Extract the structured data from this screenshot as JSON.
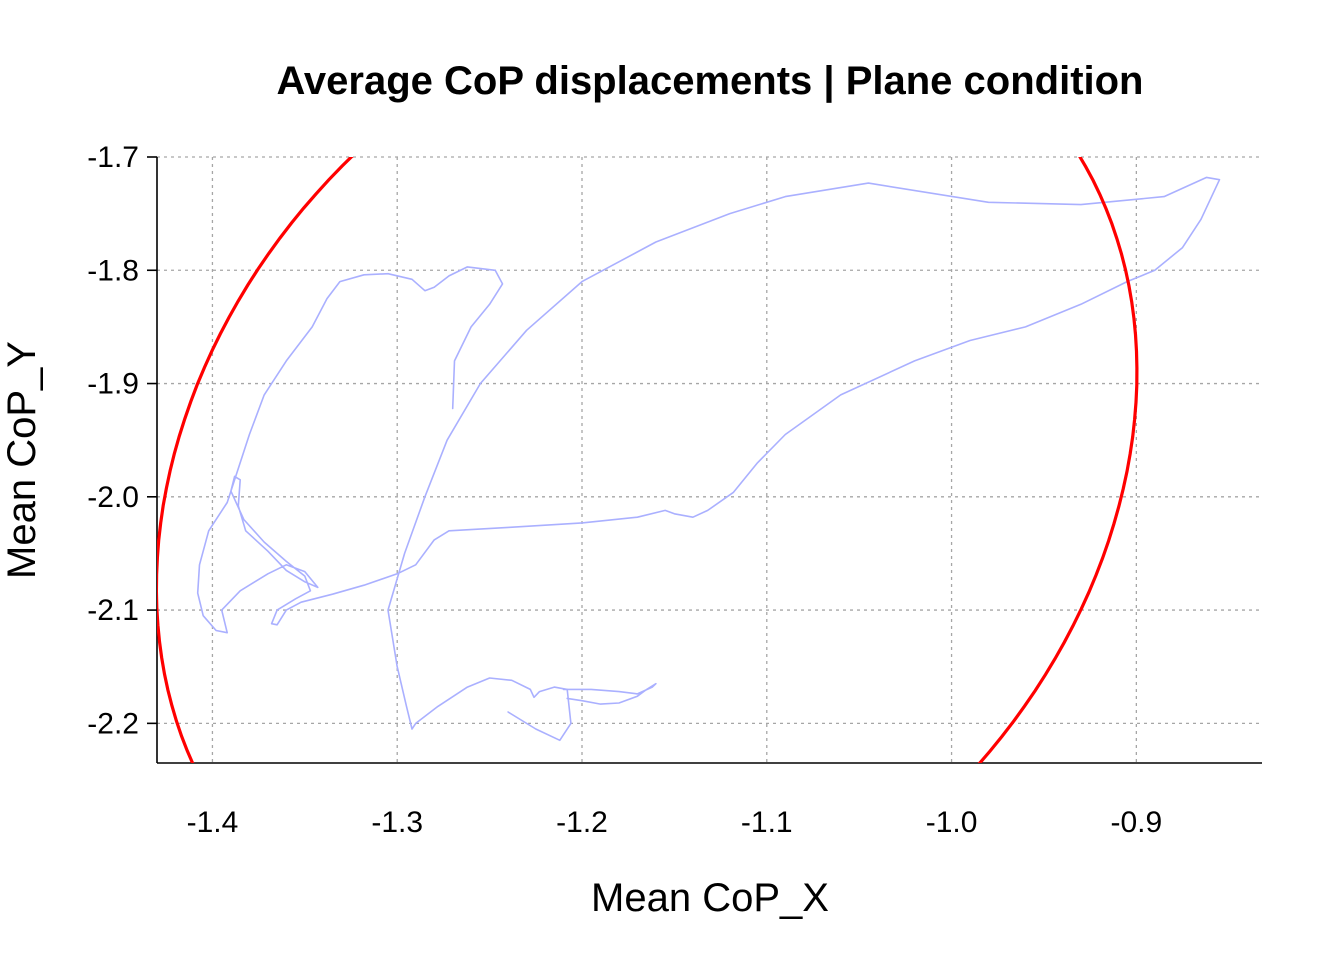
{
  "chart_data": {
    "type": "line",
    "title": "Average CoP displacements | Plane condition",
    "xlabel": "Mean CoP_X",
    "ylabel": "Mean CoP_Y",
    "xlim": [
      -1.43,
      -0.832
    ],
    "ylim": [
      -2.235,
      -1.7
    ],
    "x_ticks": [
      -1.4,
      -1.3,
      -1.2,
      -1.1,
      -1.0,
      -0.9
    ],
    "x_tick_labels": [
      "-1.4",
      "-1.3",
      "-1.2",
      "-1.1",
      "-1.0",
      "-0.9"
    ],
    "y_ticks": [
      -1.7,
      -1.8,
      -1.9,
      -2.0,
      -2.1,
      -2.2
    ],
    "y_tick_labels": [
      "-1.7",
      "-1.8",
      "-1.9",
      "-2.0",
      "-2.1",
      "-2.2"
    ],
    "grid": true,
    "trace_color": "#aab0ff",
    "ellipse_color": "#ff0000",
    "series": [
      {
        "type": "path",
        "points": [
          [
            -1.27,
            -1.922
          ],
          [
            -1.269,
            -1.88
          ],
          [
            -1.26,
            -1.85
          ],
          [
            -1.25,
            -1.83
          ],
          [
            -1.243,
            -1.812
          ],
          [
            -1.247,
            -1.8
          ],
          [
            -1.262,
            -1.797
          ],
          [
            -1.272,
            -1.805
          ],
          [
            -1.28,
            -1.815
          ],
          [
            -1.285,
            -1.818
          ],
          [
            -1.292,
            -1.808
          ],
          [
            -1.305,
            -1.803
          ],
          [
            -1.318,
            -1.804
          ],
          [
            -1.331,
            -1.81
          ],
          [
            -1.338,
            -1.825
          ],
          [
            -1.346,
            -1.85
          ],
          [
            -1.36,
            -1.88
          ],
          [
            -1.372,
            -1.91
          ],
          [
            -1.38,
            -1.945
          ],
          [
            -1.386,
            -1.975
          ],
          [
            -1.392,
            -2.005
          ],
          [
            -1.402,
            -2.03
          ],
          [
            -1.407,
            -2.06
          ],
          [
            -1.408,
            -2.085
          ],
          [
            -1.405,
            -2.105
          ],
          [
            -1.398,
            -2.118
          ],
          [
            -1.392,
            -2.12
          ],
          [
            -1.395,
            -2.1
          ],
          [
            -1.385,
            -2.083
          ],
          [
            -1.37,
            -2.068
          ],
          [
            -1.36,
            -2.06
          ],
          [
            -1.35,
            -2.066
          ],
          [
            -1.343,
            -2.08
          ],
          [
            -1.35,
            -2.075
          ],
          [
            -1.36,
            -2.065
          ],
          [
            -1.37,
            -2.048
          ],
          [
            -1.382,
            -2.03
          ],
          [
            -1.386,
            -2.008
          ],
          [
            -1.385,
            -1.985
          ],
          [
            -1.388,
            -1.982
          ],
          [
            -1.39,
            -1.995
          ],
          [
            -1.383,
            -2.02
          ],
          [
            -1.372,
            -2.04
          ],
          [
            -1.36,
            -2.057
          ],
          [
            -1.35,
            -2.07
          ],
          [
            -1.347,
            -2.083
          ],
          [
            -1.355,
            -2.09
          ],
          [
            -1.365,
            -2.1
          ],
          [
            -1.368,
            -2.112
          ],
          [
            -1.365,
            -2.113
          ],
          [
            -1.36,
            -2.1
          ],
          [
            -1.352,
            -2.093
          ],
          [
            -1.335,
            -2.086
          ],
          [
            -1.318,
            -2.078
          ],
          [
            -1.3,
            -2.068
          ],
          [
            -1.29,
            -2.06
          ],
          [
            -1.28,
            -2.038
          ],
          [
            -1.272,
            -2.03
          ],
          [
            -1.24,
            -2.027
          ],
          [
            -1.2,
            -2.023
          ],
          [
            -1.17,
            -2.018
          ],
          [
            -1.155,
            -2.012
          ],
          [
            -1.15,
            -2.015
          ],
          [
            -1.14,
            -2.018
          ],
          [
            -1.132,
            -2.012
          ],
          [
            -1.118,
            -1.996
          ],
          [
            -1.105,
            -1.97
          ],
          [
            -1.09,
            -1.945
          ],
          [
            -1.06,
            -1.91
          ],
          [
            -1.02,
            -1.88
          ],
          [
            -0.99,
            -1.862
          ],
          [
            -0.96,
            -1.85
          ],
          [
            -0.93,
            -1.83
          ],
          [
            -0.905,
            -1.81
          ],
          [
            -0.89,
            -1.8
          ],
          [
            -0.875,
            -1.78
          ],
          [
            -0.865,
            -1.755
          ],
          [
            -0.855,
            -1.72
          ],
          [
            -0.862,
            -1.718
          ],
          [
            -0.885,
            -1.735
          ],
          [
            -0.93,
            -1.742
          ],
          [
            -0.98,
            -1.74
          ],
          [
            -1.045,
            -1.723
          ],
          [
            -1.09,
            -1.735
          ],
          [
            -1.12,
            -1.75
          ],
          [
            -1.16,
            -1.775
          ],
          [
            -1.2,
            -1.81
          ],
          [
            -1.23,
            -1.853
          ],
          [
            -1.255,
            -1.9
          ],
          [
            -1.273,
            -1.95
          ],
          [
            -1.285,
            -2.0
          ],
          [
            -1.296,
            -2.05
          ],
          [
            -1.305,
            -2.1
          ],
          [
            -1.3,
            -2.15
          ],
          [
            -1.295,
            -2.185
          ],
          [
            -1.292,
            -2.205
          ],
          [
            -1.29,
            -2.2
          ],
          [
            -1.278,
            -2.185
          ],
          [
            -1.262,
            -2.168
          ],
          [
            -1.25,
            -2.16
          ],
          [
            -1.238,
            -2.162
          ],
          [
            -1.228,
            -2.17
          ],
          [
            -1.226,
            -2.177
          ],
          [
            -1.223,
            -2.172
          ],
          [
            -1.215,
            -2.168
          ],
          [
            -1.208,
            -2.17
          ],
          [
            -1.206,
            -2.2
          ],
          [
            -1.212,
            -2.215
          ],
          [
            -1.225,
            -2.205
          ],
          [
            -1.24,
            -2.19
          ]
        ]
      },
      {
        "type": "path",
        "points": [
          [
            -1.21,
            -2.17
          ],
          [
            -1.195,
            -2.17
          ],
          [
            -1.18,
            -2.172
          ],
          [
            -1.17,
            -2.174
          ],
          [
            -1.162,
            -2.168
          ],
          [
            -1.16,
            -2.165
          ],
          [
            -1.165,
            -2.17
          ],
          [
            -1.17,
            -2.176
          ],
          [
            -1.18,
            -2.182
          ],
          [
            -1.19,
            -2.183
          ],
          [
            -1.2,
            -2.18
          ],
          [
            -1.208,
            -2.178
          ]
        ]
      },
      {
        "type": "ellipse",
        "center": [
          -1.165,
          -1.985
        ],
        "x_half_axes": [
          0.263,
          0.035
        ],
        "y_half_axes": [
          0.038,
          0.438
        ],
        "t_range": [
          0,
          360
        ]
      }
    ]
  }
}
